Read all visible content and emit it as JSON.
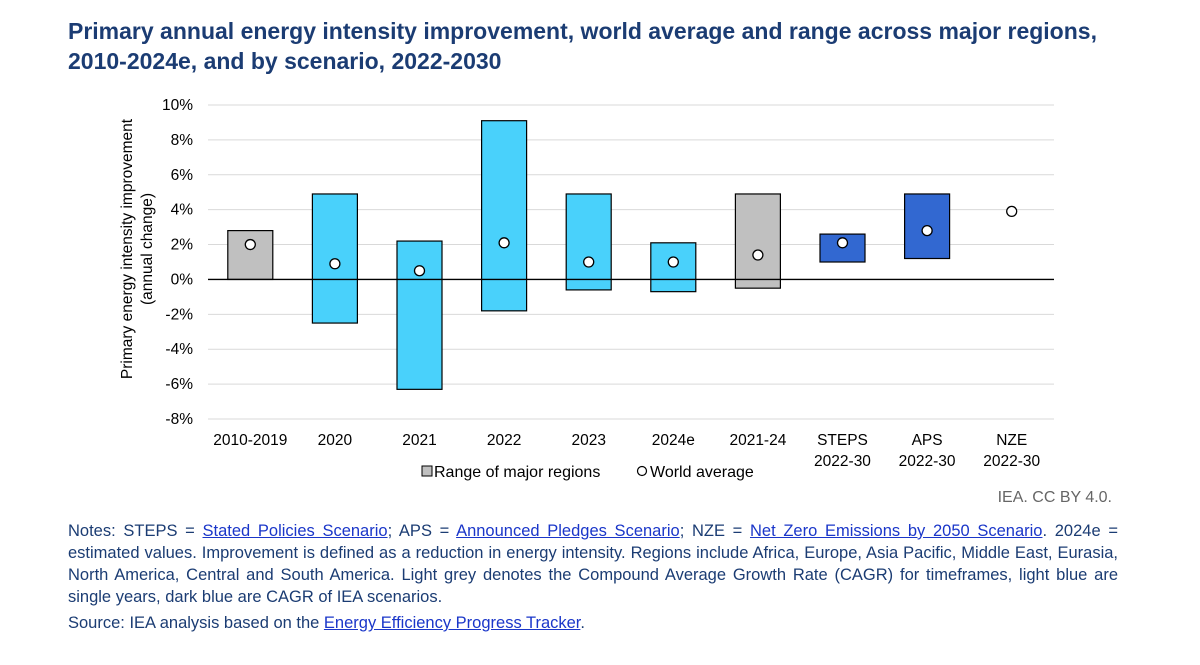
{
  "title": "Primary annual energy intensity improvement, world average and range across major regions, 2010-2024e, and by scenario, 2022-2030",
  "colors": {
    "grey": "#c0c0c0",
    "light_blue": "#49d1fb",
    "dark_blue": "#3268d1",
    "title": "#1b3c73",
    "link": "#1a36c9"
  },
  "chart_data": {
    "type": "range-bar",
    "ylabel_line1": "Primary energy intensity improvement",
    "ylabel_line2": "(annual change)",
    "ylim": [
      -8,
      10
    ],
    "yticks": [
      -8,
      -6,
      -4,
      -2,
      0,
      2,
      4,
      6,
      8,
      10
    ],
    "ytick_labels": [
      "-8%",
      "-6%",
      "-4%",
      "-2%",
      "0%",
      "2%",
      "4%",
      "6%",
      "8%",
      "10%"
    ],
    "categories": [
      {
        "label1": "2010-2019",
        "label2": "",
        "low": 0,
        "high": 2.8,
        "avg": 2.0,
        "color": "grey"
      },
      {
        "label1": "2020",
        "label2": "",
        "low": -2.5,
        "high": 4.9,
        "avg": 0.9,
        "color": "light_blue"
      },
      {
        "label1": "2021",
        "label2": "",
        "low": -6.3,
        "high": 2.2,
        "avg": 0.5,
        "color": "light_blue"
      },
      {
        "label1": "2022",
        "label2": "",
        "low": -1.8,
        "high": 9.1,
        "avg": 2.1,
        "color": "light_blue"
      },
      {
        "label1": "2023",
        "label2": "",
        "low": -0.6,
        "high": 4.9,
        "avg": 1.0,
        "color": "light_blue"
      },
      {
        "label1": "2024e",
        "label2": "",
        "low": -0.7,
        "high": 2.1,
        "avg": 1.0,
        "color": "light_blue"
      },
      {
        "label1": "2021-24",
        "label2": "",
        "low": -0.5,
        "high": 4.9,
        "avg": 1.4,
        "color": "grey"
      },
      {
        "label1": "STEPS",
        "label2": "2022-30",
        "low": 1.0,
        "high": 2.6,
        "avg": 2.1,
        "color": "dark_blue"
      },
      {
        "label1": "APS",
        "label2": "2022-30",
        "low": 1.2,
        "high": 4.9,
        "avg": 2.8,
        "color": "dark_blue"
      },
      {
        "label1": "NZE",
        "label2": "2022-30",
        "low": null,
        "high": null,
        "avg": 3.9,
        "color": "dark_blue"
      }
    ],
    "legend": {
      "range_label": "Range of major regions",
      "avg_label": "World average",
      "placement": "bottom-center"
    }
  },
  "credit": "IEA. CC BY 4.0.",
  "notes": {
    "prefix": "Notes: STEPS = ",
    "link1": "Stated Policies Scenario",
    "mid1": "; APS = ",
    "link2": "Announced Pledges Scenario",
    "mid2": "; NZE = ",
    "link3": "Net Zero Emissions by 2050 Scenario",
    "rest": ". 2024e = estimated values. Improvement is defined as a reduction in energy intensity. Regions include Africa, Europe, Asia Pacific, Middle East, Eurasia, North America, Central and South America. Light grey denotes the Compound Average Growth Rate (CAGR) for timeframes, light blue are single years, dark blue are CAGR of IEA scenarios."
  },
  "source": {
    "prefix": "Source: IEA analysis based on the ",
    "link": "Energy Efficiency Progress Tracker",
    "suffix": "."
  }
}
